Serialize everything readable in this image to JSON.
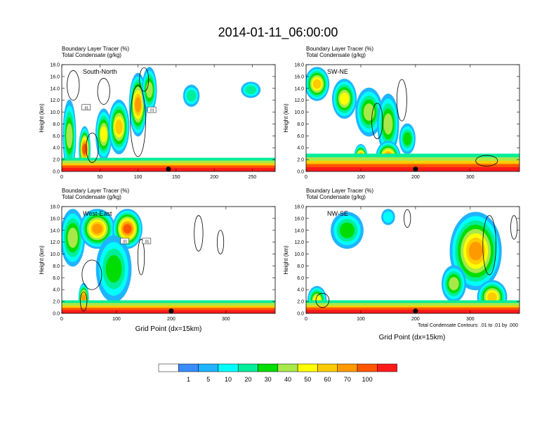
{
  "chart_data": {
    "type": "heatmap",
    "title": "2014-01-11_06:00:00",
    "panel_subtitle_1": "Boundary Layer Tracer   (%)",
    "panel_subtitle_2": "Total Condensate   (g/kg)",
    "ylabel": "Height (km)",
    "xlabel": "Grid Point (dx=15km)",
    "contour_note": "Total Condensate Contours: .01 to .01 by .000",
    "contour_label": ".01",
    "y_ticks": [
      "0.0",
      "2.0",
      "4.0",
      "6.0",
      "8.0",
      "10.0",
      "12.0",
      "14.0",
      "16.0",
      "18.0"
    ],
    "ylim": [
      0,
      18
    ],
    "colorbar": {
      "labels": [
        "1",
        "5",
        "10",
        "20",
        "30",
        "40",
        "50",
        "60",
        "70",
        "100"
      ],
      "colors": [
        "#ffffff",
        "#3a8cff",
        "#1fb4ff",
        "#00ffff",
        "#00ee9a",
        "#00dd00",
        "#a8e84a",
        "#ffff00",
        "#ffcc00",
        "#ff9900",
        "#ff5500",
        "#ff1a1a"
      ]
    },
    "panels": [
      {
        "label": "South-North",
        "x_max": 280,
        "x_ticks": [
          0,
          50,
          100,
          150,
          200,
          250
        ],
        "marker_x": 140,
        "bl_height_km": 2.3,
        "bl_core_km": 1.0,
        "tracer_plumes": [
          {
            "x": 10,
            "bottom": 0,
            "top": 12.0,
            "width": 14,
            "value": 30
          },
          {
            "x": 30,
            "bottom": 0,
            "top": 7.5,
            "width": 12,
            "value": 70
          },
          {
            "x": 55,
            "bottom": 2,
            "top": 10.5,
            "width": 18,
            "value": 40
          },
          {
            "x": 75,
            "bottom": 3,
            "top": 12.0,
            "width": 24,
            "value": 50
          },
          {
            "x": 100,
            "bottom": 6,
            "top": 16.5,
            "width": 20,
            "value": 60
          },
          {
            "x": 115,
            "bottom": 10,
            "top": 17.5,
            "width": 16,
            "value": 30
          },
          {
            "x": 170,
            "bottom": 11.0,
            "top": 14.5,
            "width": 18,
            "value": 10
          },
          {
            "x": 248,
            "bottom": 12.5,
            "top": 15.0,
            "width": 22,
            "value": 10
          }
        ],
        "contours": [
          {
            "x": 15,
            "y": 14.5,
            "rx": 8,
            "ry": 2.5
          },
          {
            "x": 55,
            "y": 13.5,
            "rx": 8,
            "ry": 2.2
          },
          {
            "x": 100,
            "y": 8.5,
            "rx": 10,
            "ry": 6
          },
          {
            "x": 108,
            "y": 15.5,
            "rx": 6,
            "ry": 2
          },
          {
            "x": 40,
            "y": 4.0,
            "rx": 8,
            "ry": 2.5
          }
        ],
        "contour_labels": [
          {
            "x": 32,
            "y": 10.8
          },
          {
            "x": 118,
            "y": 10.4
          }
        ]
      },
      {
        "label": "SW-NE",
        "x_max": 390,
        "x_ticks": [
          0,
          100,
          200,
          300
        ],
        "marker_x": 200,
        "bl_height_km": 3.0,
        "bl_core_km": 1.2,
        "tracer_plumes": [
          {
            "x": 20,
            "bottom": 12,
            "top": 17.5,
            "width": 40,
            "value": 50
          },
          {
            "x": 70,
            "bottom": 9,
            "top": 15.5,
            "width": 40,
            "value": 40
          },
          {
            "x": 115,
            "bottom": 6,
            "top": 14.0,
            "width": 45,
            "value": 30
          },
          {
            "x": 150,
            "bottom": 3,
            "top": 13.0,
            "width": 35,
            "value": 30
          },
          {
            "x": 185,
            "bottom": 3,
            "top": 8.0,
            "width": 25,
            "value": 20
          },
          {
            "x": 100,
            "bottom": 0,
            "top": 4.5,
            "width": 20,
            "value": 70
          },
          {
            "x": 150,
            "bottom": 0,
            "top": 5.0,
            "width": 40,
            "value": 60
          }
        ],
        "contours": [
          {
            "x": 175,
            "y": 12.0,
            "rx": 9,
            "ry": 3.5
          },
          {
            "x": 130,
            "y": 8.5,
            "rx": 10,
            "ry": 3
          },
          {
            "x": 330,
            "y": 1.8,
            "rx": 20,
            "ry": 0.9
          }
        ],
        "contour_labels": []
      },
      {
        "label": "West-East",
        "x_max": 390,
        "x_ticks": [
          0,
          100,
          200,
          300
        ],
        "marker_x": 200,
        "bl_height_km": 2.2,
        "bl_core_km": 0.9,
        "tracer_plumes": [
          {
            "x": 20,
            "bottom": 8,
            "top": 17.5,
            "width": 40,
            "value": 30
          },
          {
            "x": 65,
            "bottom": 11,
            "top": 17.5,
            "width": 60,
            "value": 60
          },
          {
            "x": 120,
            "bottom": 11,
            "top": 17.5,
            "width": 50,
            "value": 70
          },
          {
            "x": 95,
            "bottom": 2,
            "top": 13.0,
            "width": 60,
            "value": 20
          },
          {
            "x": 40,
            "bottom": 0,
            "top": 5.0,
            "width": 14,
            "value": 60
          }
        ],
        "contours": [
          {
            "x": 55,
            "y": 6.5,
            "rx": 18,
            "ry": 2.5
          },
          {
            "x": 145,
            "y": 9.5,
            "rx": 6,
            "ry": 3
          },
          {
            "x": 250,
            "y": 13.5,
            "rx": 8,
            "ry": 3
          },
          {
            "x": 290,
            "y": 12.0,
            "rx": 6,
            "ry": 2
          },
          {
            "x": 40,
            "y": 2.0,
            "rx": 6,
            "ry": 1.6
          }
        ],
        "contour_labels": [
          {
            "x": 115,
            "y": 12.2
          },
          {
            "x": 155,
            "y": 12.2
          }
        ]
      },
      {
        "label": "NW-SE",
        "x_max": 390,
        "x_ticks": [
          0,
          100,
          200,
          300
        ],
        "marker_x": 200,
        "bl_height_km": 2.2,
        "bl_core_km": 1.0,
        "tracer_plumes": [
          {
            "x": 75,
            "bottom": 11,
            "top": 17.0,
            "width": 55,
            "value": 20
          },
          {
            "x": 150,
            "bottom": 15,
            "top": 17.5,
            "width": 20,
            "value": 5
          },
          {
            "x": 310,
            "bottom": 4,
            "top": 17.0,
            "width": 90,
            "value": 60
          },
          {
            "x": 270,
            "bottom": 2,
            "top": 8.0,
            "width": 40,
            "value": 30
          },
          {
            "x": 20,
            "bottom": 0,
            "top": 4.5,
            "width": 30,
            "value": 40
          },
          {
            "x": 340,
            "bottom": 0,
            "top": 5.5,
            "width": 50,
            "value": 50
          }
        ],
        "contours": [
          {
            "x": 335,
            "y": 11.5,
            "rx": 12,
            "ry": 5
          },
          {
            "x": 380,
            "y": 14.5,
            "rx": 6,
            "ry": 2
          },
          {
            "x": 185,
            "y": 16.0,
            "rx": 6,
            "ry": 1.5
          },
          {
            "x": 30,
            "y": 2.2,
            "rx": 12,
            "ry": 1.2
          }
        ],
        "contour_labels": []
      }
    ]
  }
}
